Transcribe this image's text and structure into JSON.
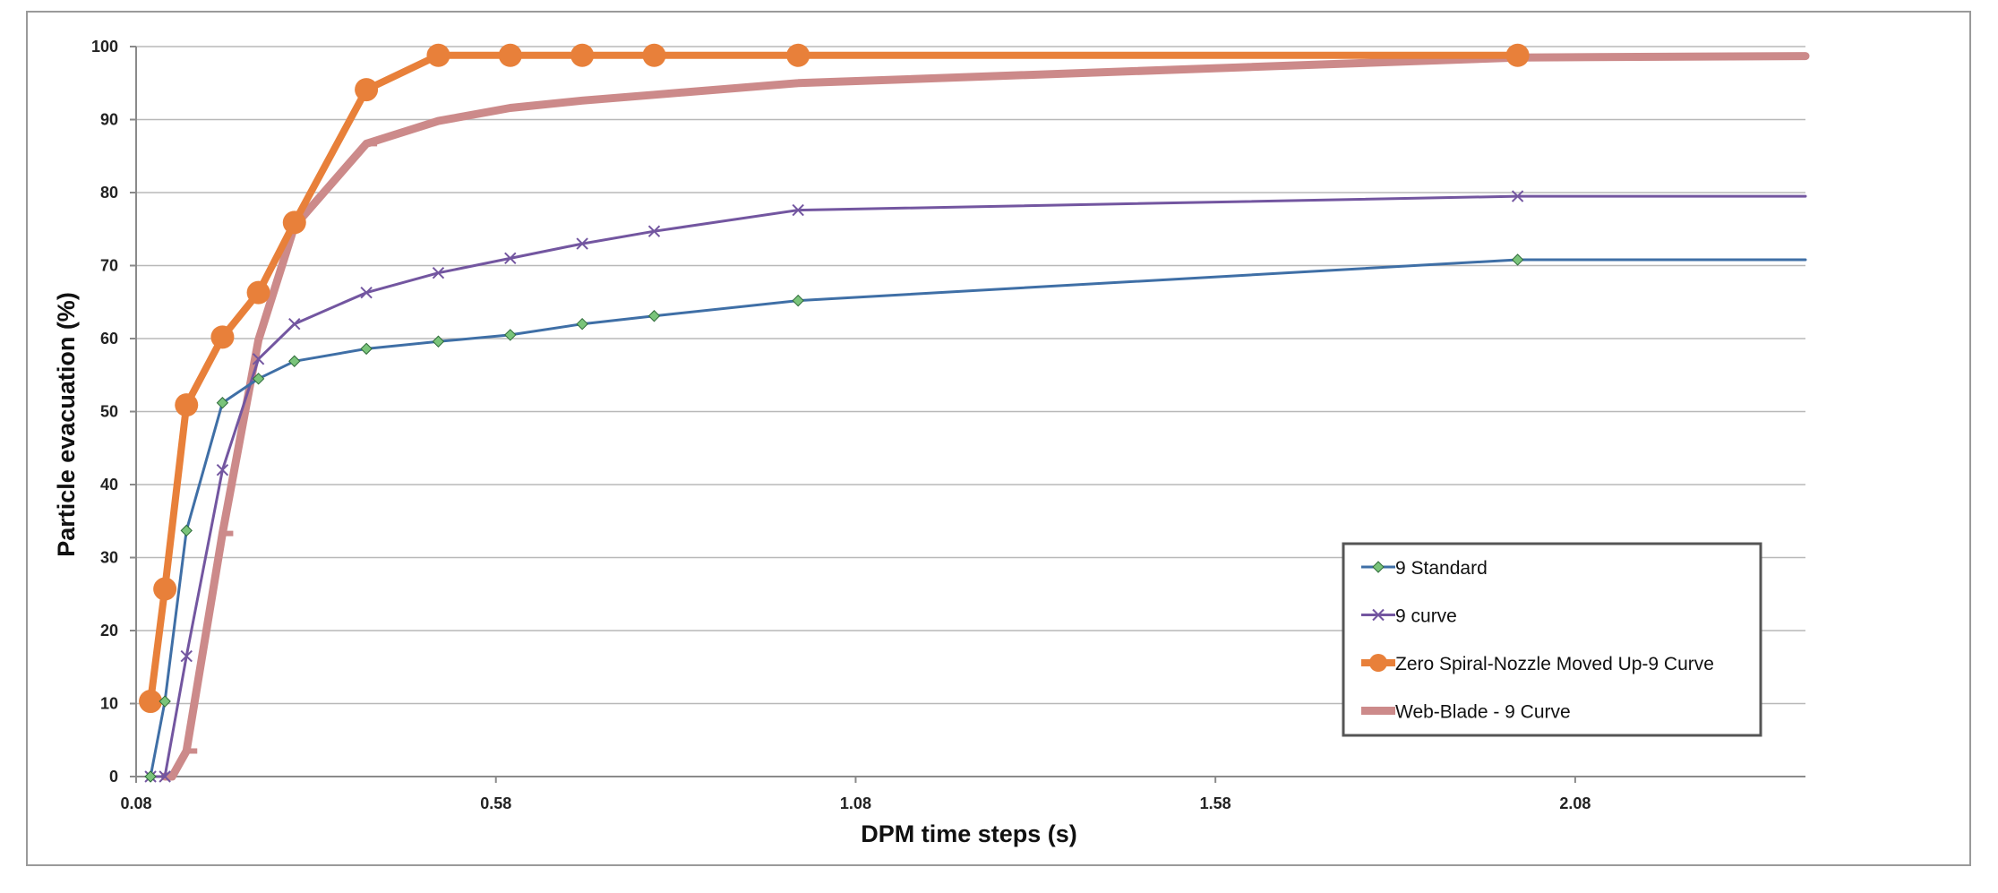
{
  "chart_data": {
    "type": "line",
    "title": "",
    "xlabel": "DPM time steps (s)",
    "ylabel": "Particle evacuation (%)",
    "xlim": [
      0.08,
      2.4
    ],
    "ylim": [
      0,
      100
    ],
    "xticks": [
      0.08,
      0.58,
      1.08,
      1.58,
      2.08
    ],
    "xtick_labels": [
      "0.08",
      "0.58",
      "1.08",
      "1.58",
      "2.08"
    ],
    "yticks": [
      0,
      10,
      20,
      30,
      40,
      50,
      60,
      70,
      80,
      90,
      100
    ],
    "ytick_labels": [
      "0",
      "10",
      "20",
      "30",
      "40",
      "50",
      "60",
      "70",
      "80",
      "90",
      "100"
    ],
    "grid": "horizontal",
    "legend_position": "bottom-right",
    "series": [
      {
        "name": "9 Standard",
        "color": "#3f6fa6",
        "marker": "diamond",
        "markerColor": "#7ac47a",
        "lineWidth": 3,
        "x": [
          0.1,
          0.12,
          0.15,
          0.2,
          0.25,
          0.3,
          0.4,
          0.5,
          0.6,
          0.7,
          0.8,
          1.0,
          2.0,
          2.4
        ],
        "y": [
          0,
          10.3,
          33.7,
          51.2,
          54.5,
          56.9,
          58.6,
          59.6,
          60.5,
          62,
          63.1,
          65.2,
          70.8,
          70.8
        ]
      },
      {
        "name": "9 curve",
        "color": "#7356a0",
        "marker": "x",
        "markerColor": "#7356a0",
        "lineWidth": 3,
        "x": [
          0.1,
          0.12,
          0.15,
          0.2,
          0.25,
          0.3,
          0.4,
          0.5,
          0.6,
          0.7,
          0.8,
          1.0,
          2.0,
          2.4
        ],
        "y": [
          0,
          0,
          16.5,
          42,
          57.2,
          62,
          66.3,
          69,
          71,
          73,
          74.7,
          77.6,
          79.5,
          79.5
        ]
      },
      {
        "name": "Zero Spiral-Nozzle Moved Up-9 Curve",
        "color": "#e8803a",
        "marker": "circle",
        "markerColor": "#e8803a",
        "lineWidth": 8,
        "x": [
          0.1,
          0.12,
          0.15,
          0.2,
          0.25,
          0.3,
          0.4,
          0.5,
          0.6,
          0.7,
          0.8,
          1.0,
          2.0
        ],
        "y": [
          10.3,
          25.7,
          50.9,
          60.2,
          66.3,
          75.9,
          94.1,
          98.8,
          98.8,
          98.8,
          98.8,
          98.8,
          98.8
        ]
      },
      {
        "name": "Web-Blade - 9 Curve",
        "color": "#cc8a8a",
        "marker": "dash",
        "markerColor": "#cc8a8a",
        "lineWidth": 9,
        "x": [
          0.12,
          0.13,
          0.15,
          0.2,
          0.25,
          0.3,
          0.4,
          0.5,
          0.6,
          0.7,
          0.8,
          1.0,
          2.0,
          2.4
        ],
        "y": [
          0,
          0,
          3.5,
          33.3,
          59.8,
          75.4,
          86.7,
          89.8,
          91.6,
          92.6,
          93.4,
          95,
          98.5,
          98.7
        ]
      }
    ]
  }
}
